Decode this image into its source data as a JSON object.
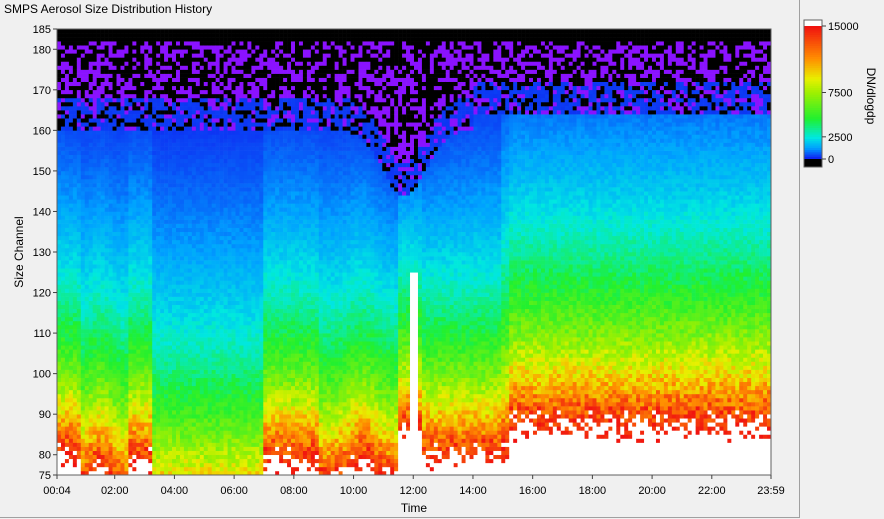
{
  "window": {
    "title": "SMPS Aerosol Size Distribution History"
  },
  "chart_data": {
    "type": "heatmap",
    "title": "SMPS Aerosol Size Distribution History",
    "xlabel": "Time",
    "ylabel": "Size Channel",
    "xticks": [
      "00:04",
      "02:00",
      "04:00",
      "06:00",
      "08:00",
      "10:00",
      "12:00",
      "14:00",
      "16:00",
      "18:00",
      "20:00",
      "22:00",
      "23:59"
    ],
    "xtick_hours": [
      0.067,
      2,
      4,
      6,
      8,
      10,
      12,
      14,
      16,
      18,
      20,
      22,
      23.983
    ],
    "xlim": [
      0.067,
      23.983
    ],
    "yticks": [
      "75",
      "80",
      "90",
      "100",
      "110",
      "120",
      "130",
      "140",
      "150",
      "160",
      "170",
      "180",
      "185"
    ],
    "ytick_values": [
      75,
      80,
      90,
      100,
      110,
      120,
      130,
      140,
      150,
      160,
      170,
      180,
      185
    ],
    "ylim": [
      75,
      185
    ],
    "colorbar": {
      "label": "DN/dlogdp",
      "ticks": [
        "0",
        "2500",
        "7500",
        "15000"
      ],
      "tick_values": [
        0,
        2500,
        7500,
        15000
      ],
      "range": [
        0,
        15000
      ],
      "over_color": "#ffffff",
      "under_color": "#000000"
    },
    "colors": {
      "black": "#000000",
      "violet": "#8a12ff",
      "blue": "#1018f0",
      "cyan": "#00e8e0",
      "green": "#20f030",
      "yellow": "#e8f000",
      "orange": "#ff9000",
      "red": "#f01010",
      "white": "#ffffff"
    },
    "profile_notes": "Concentration decreases with size channel; peak (>15000, white) below ~100 for most of day; low (black) above ~170 except near 12:00 where dip to ~150"
  }
}
